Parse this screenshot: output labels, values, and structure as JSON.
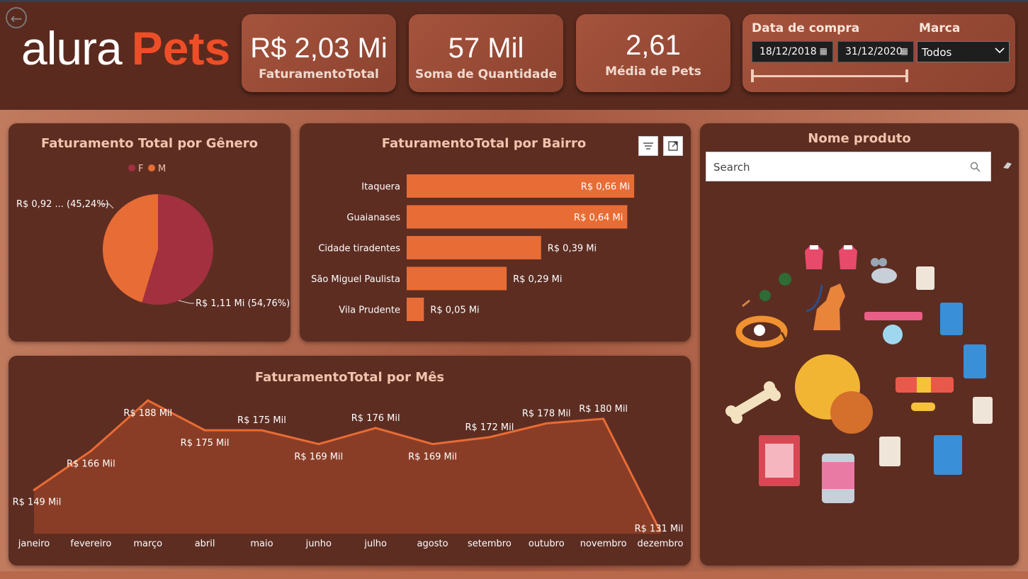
{
  "header": {
    "logo": {
      "part1": "alura",
      "part2": "Pets"
    },
    "cards": [
      {
        "value": "R$ 2,03 Mi",
        "label": "FaturamentoTotal"
      },
      {
        "value": "57 Mil",
        "label": "Soma de Quantidade"
      },
      {
        "value": "2,61",
        "label": "Média de Pets"
      }
    ],
    "filters": {
      "date_title": "Data de compra",
      "date_start": "18/12/2018",
      "date_end": "31/12/2020",
      "brand_title": "Marca",
      "brand_value": "Todos"
    }
  },
  "colors": {
    "accent": "#e86c35",
    "pie_f": "#a3303e",
    "pie_m": "#e86c35",
    "panel": "#5d2d22"
  },
  "gender_panel": {
    "title": "Faturamento Total por Gênero",
    "legend": [
      "F",
      "M"
    ]
  },
  "bairro_panel": {
    "title": "FaturamentoTotal por Bairro"
  },
  "month_panel": {
    "title": "FaturamentoTotal por Mês"
  },
  "product_panel": {
    "title": "Nome produto",
    "search_placeholder": "Search"
  },
  "chart_data": [
    {
      "type": "pie",
      "title": "Faturamento Total por Gênero",
      "labels": [
        "F",
        "M"
      ],
      "values": [
        1.11,
        0.92
      ],
      "percent": [
        54.76,
        45.24
      ],
      "data_labels": [
        "R$ 1,11 Mi (54,76%)",
        "R$ 0,92 ... (45,24%)"
      ]
    },
    {
      "type": "bar",
      "orientation": "horizontal",
      "title": "FaturamentoTotal por Bairro",
      "categories": [
        "Itaquera",
        "Guaianases",
        "Cidade tiradentes",
        "São Miguel Paulista",
        "Vila Prudente"
      ],
      "values": [
        0.66,
        0.64,
        0.39,
        0.29,
        0.05
      ],
      "data_labels": [
        "R$ 0,66 Mi",
        "R$ 0,64 Mi",
        "R$ 0,39 Mi",
        "R$ 0,29 Mi",
        "R$ 0,05 Mi"
      ],
      "xlim": [
        0,
        0.67
      ]
    },
    {
      "type": "area",
      "title": "FaturamentoTotal por Mês",
      "categories": [
        "janeiro",
        "fevereiro",
        "março",
        "abril",
        "maio",
        "junho",
        "julho",
        "agosto",
        "setembro",
        "outubro",
        "novembro",
        "dezembro"
      ],
      "values": [
        149,
        166,
        188,
        175,
        175,
        169,
        176,
        169,
        172,
        178,
        180,
        131
      ],
      "data_labels": [
        "R$ 149 Mil",
        "R$ 166 Mil",
        "R$ 188 Mil",
        "R$ 175 Mil",
        "R$ 175 Mil",
        "R$ 169 Mil",
        "R$ 176 Mil",
        "R$ 169 Mil",
        "R$ 172 Mil",
        "R$ 178 Mil",
        "R$ 180 Mil",
        "R$ 131 Mil"
      ],
      "ylim": [
        130,
        188
      ]
    }
  ]
}
